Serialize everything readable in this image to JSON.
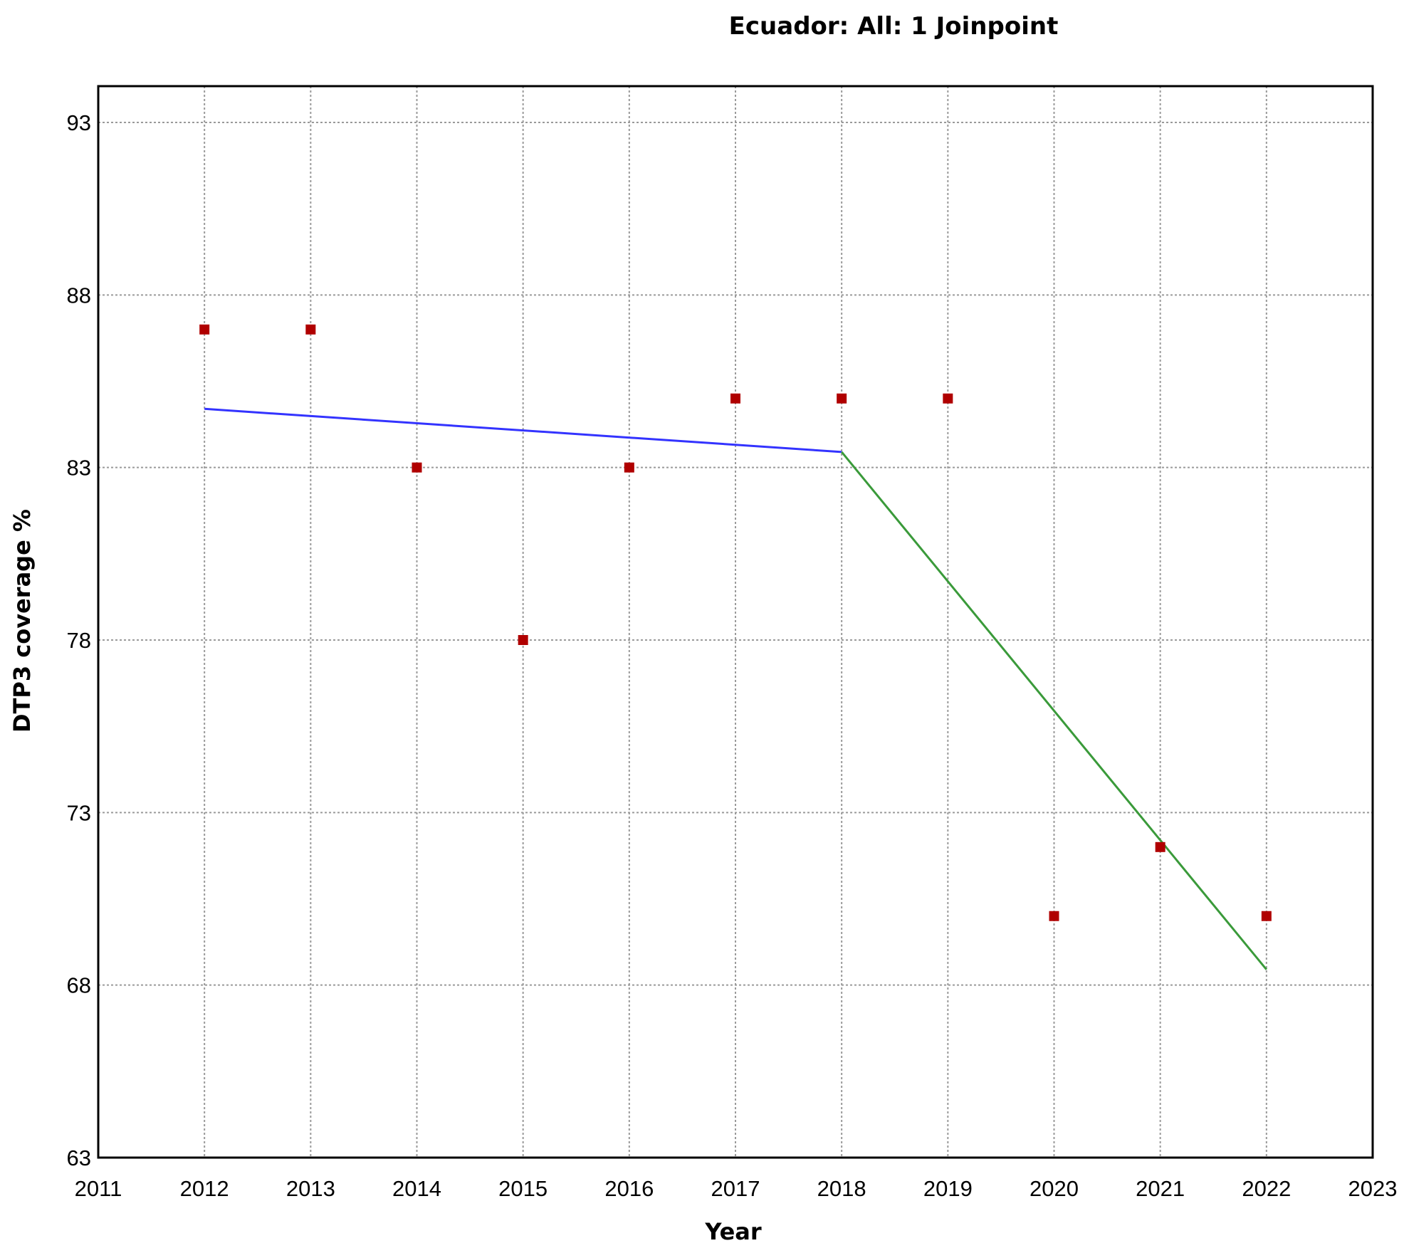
{
  "chart_data": {
    "type": "scatter",
    "title": "Ecuador: All: 1 Joinpoint",
    "xlabel": "Year",
    "ylabel": "DTP3 coverage %",
    "xlim": [
      2011,
      2023
    ],
    "ylim": [
      63,
      94
    ],
    "x_ticks": [
      "2011",
      "2012",
      "2013",
      "2014",
      "2015",
      "2016",
      "2017",
      "2018",
      "2019",
      "2020",
      "2021",
      "2022",
      "2023"
    ],
    "y_ticks": [
      "63",
      "68",
      "73",
      "78",
      "83",
      "88",
      "93"
    ],
    "grid": true,
    "legend": "none",
    "series": [
      {
        "kind": "points",
        "marker": "square",
        "color": "#b00000",
        "x": [
          2012,
          2013,
          2014,
          2015,
          2016,
          2017,
          2018,
          2019,
          2020,
          2021,
          2022
        ],
        "y": [
          87,
          87,
          83,
          78,
          83,
          85,
          85,
          85,
          70,
          72,
          70
        ]
      },
      {
        "kind": "line",
        "color": "#3333ff",
        "x": [
          2012,
          2018
        ],
        "y": [
          84.7,
          83.45
        ]
      },
      {
        "kind": "line",
        "color": "#3a9a3a",
        "x": [
          2018,
          2022
        ],
        "y": [
          83.45,
          68.45
        ]
      }
    ]
  }
}
